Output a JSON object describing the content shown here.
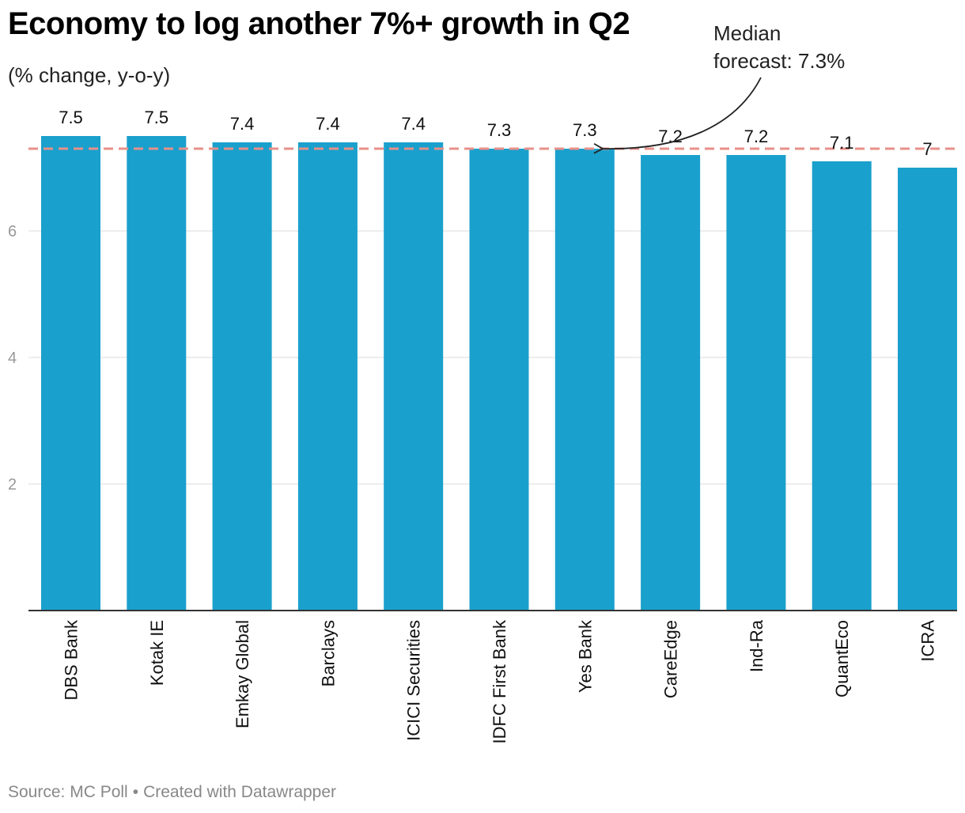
{
  "header": {
    "title": "Economy to log another 7%+ growth in Q2",
    "subtitle": "(% change, y-o-y)"
  },
  "footer": {
    "source": "Source: MC Poll",
    "separator": "•",
    "credit": "Created with Datawrapper"
  },
  "chart_data": {
    "type": "bar",
    "categories": [
      "DBS Bank",
      "Kotak IE",
      "Emkay Global",
      "Barclays",
      "ICICI Securities",
      "IDFC First Bank",
      "Yes Bank",
      "CareEdge",
      "Ind-Ra",
      "QuantEco",
      "ICRA"
    ],
    "values": [
      7.5,
      7.5,
      7.4,
      7.4,
      7.4,
      7.3,
      7.3,
      7.2,
      7.2,
      7.1,
      7
    ],
    "value_labels": [
      "7.5",
      "7.5",
      "7.4",
      "7.4",
      "7.4",
      "7.3",
      "7.3",
      "7.2",
      "7.2",
      "7.1",
      "7"
    ],
    "title": "Economy to log another 7%+ growth in Q2",
    "subtitle": "(% change, y-o-y)",
    "ylim": [
      0,
      8
    ],
    "yticks": [
      2,
      4,
      6
    ],
    "grid": true,
    "reference_line": {
      "value": 7.3,
      "style": "dashed",
      "label_lines": [
        "Median",
        "forecast: 7.3%"
      ]
    },
    "colors": {
      "bar": "#1aa0cc",
      "reference": "#e8908a",
      "grid": "#e2e2e2",
      "axis": "#333333"
    }
  }
}
